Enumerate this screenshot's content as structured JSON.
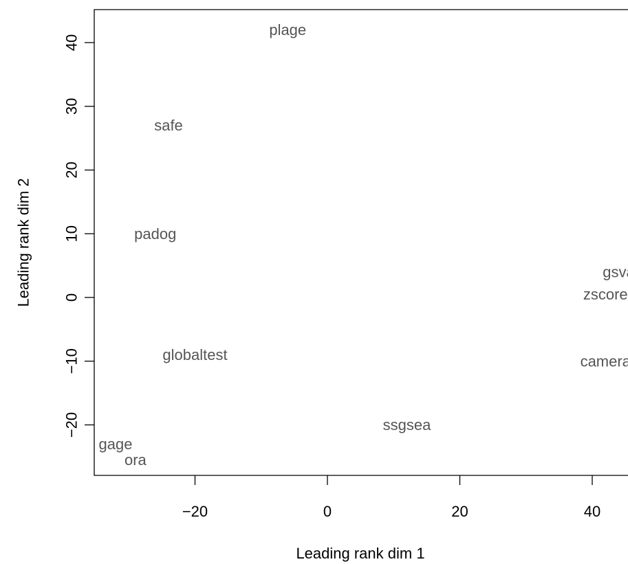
{
  "chart_data": {
    "type": "scatter",
    "title": "",
    "xlabel": "Leading rank dim 1",
    "ylabel": "Leading rank dim 2",
    "xlim": [
      -35,
      45
    ],
    "ylim": [
      -28,
      45
    ],
    "xticks": [
      -20,
      0,
      20,
      40
    ],
    "yticks": [
      -20,
      -10,
      0,
      10,
      20,
      30,
      40
    ],
    "grid": false,
    "points": [
      {
        "label": "plage",
        "x": -6,
        "y": 42
      },
      {
        "label": "safe",
        "x": -24,
        "y": 27
      },
      {
        "label": "padog",
        "x": -26,
        "y": 10
      },
      {
        "label": "gsva",
        "x": 44,
        "y": 4
      },
      {
        "label": "zscore",
        "x": 42,
        "y": 0.5
      },
      {
        "label": "globaltest",
        "x": -20,
        "y": -9
      },
      {
        "label": "camera",
        "x": 42,
        "y": -10
      },
      {
        "label": "ssgsea",
        "x": 12,
        "y": -20
      },
      {
        "label": "gage",
        "x": -32,
        "y": -23
      },
      {
        "label": "ora",
        "x": -29,
        "y": -25.5
      }
    ]
  }
}
